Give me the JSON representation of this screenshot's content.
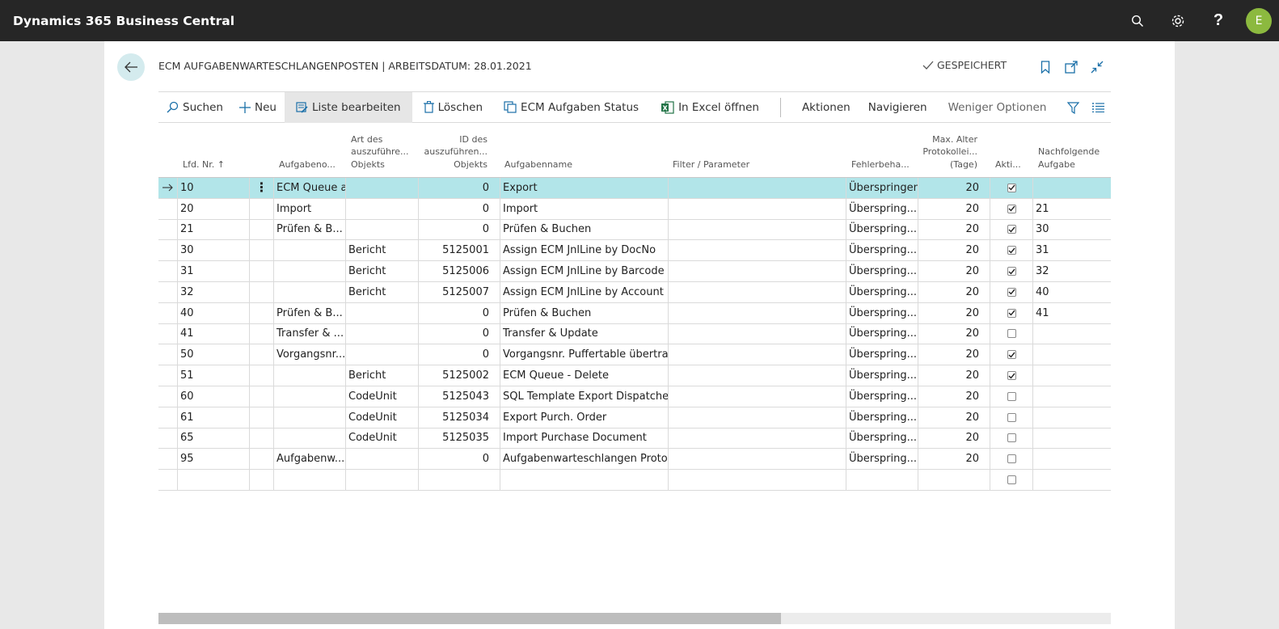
{
  "app": {
    "title": "Dynamics 365 Business Central",
    "avatar_initial": "E"
  },
  "page": {
    "title": "ECM AUFGABENWARTESCHLANGENPOSTEN | ARBEITSDATUM: 28.01.2021",
    "saved_label": "GESPEICHERT"
  },
  "actions": {
    "search": "Suchen",
    "new": "Neu",
    "edit_list": "Liste bearbeiten",
    "delete": "Löschen",
    "ecm_status": "ECM Aufgaben Status",
    "excel": "In Excel öffnen",
    "actions_menu": "Aktionen",
    "navigate": "Navigieren",
    "fewer_options": "Weniger Optionen"
  },
  "columns": {
    "lfd": "Lfd. Nr. ↑",
    "aufgabeno": "Aufgabeno...",
    "art_1": "Art des",
    "art_2": "auszuführe...",
    "art_3": "Objekts",
    "id_1": "ID des",
    "id_2": "auszuführen...",
    "id_3": "Objekts",
    "name": "Aufgabenname",
    "filter": "Filter / Parameter",
    "fehler": "Fehlerbeha...",
    "maxalter_1": "Max. Alter",
    "maxalter_2": "Protokollei...",
    "maxalter_3": "(Tage)",
    "aktiv": "Akti...",
    "nachf_1": "Nachfolgende",
    "nachf_2": "Aufgabe"
  },
  "rows": [
    {
      "lfd": "10",
      "code": "ECM Queue a",
      "art": "",
      "id": "0",
      "name": "Export",
      "filter": "",
      "fehler": "Überspringen",
      "maxage": "20",
      "aktiv": true,
      "next": ""
    },
    {
      "lfd": "20",
      "code": "Import",
      "art": "",
      "id": "0",
      "name": "Import",
      "filter": "",
      "fehler": "Überspring...",
      "maxage": "20",
      "aktiv": true,
      "next": "21"
    },
    {
      "lfd": "21",
      "code": "Prüfen & B...",
      "art": "",
      "id": "0",
      "name": "Prüfen & Buchen",
      "filter": "",
      "fehler": "Überspring...",
      "maxage": "20",
      "aktiv": true,
      "next": "30"
    },
    {
      "lfd": "30",
      "code": "",
      "art": "Bericht",
      "id": "5125001",
      "name": "Assign ECM JnlLine by DocNo",
      "filter": "",
      "fehler": "Überspring...",
      "maxage": "20",
      "aktiv": true,
      "next": "31"
    },
    {
      "lfd": "31",
      "code": "",
      "art": "Bericht",
      "id": "5125006",
      "name": "Assign ECM JnlLine by Barcode",
      "filter": "",
      "fehler": "Überspring...",
      "maxage": "20",
      "aktiv": true,
      "next": "32"
    },
    {
      "lfd": "32",
      "code": "",
      "art": "Bericht",
      "id": "5125007",
      "name": "Assign ECM JnlLine by Account",
      "filter": "",
      "fehler": "Überspring...",
      "maxage": "20",
      "aktiv": true,
      "next": "40"
    },
    {
      "lfd": "40",
      "code": "Prüfen & B...",
      "art": "",
      "id": "0",
      "name": "Prüfen & Buchen",
      "filter": "",
      "fehler": "Überspring...",
      "maxage": "20",
      "aktiv": true,
      "next": "41"
    },
    {
      "lfd": "41",
      "code": "Transfer & ...",
      "art": "",
      "id": "0",
      "name": "Transfer & Update",
      "filter": "",
      "fehler": "Überspring...",
      "maxage": "20",
      "aktiv": false,
      "next": ""
    },
    {
      "lfd": "50",
      "code": "Vorgangsnr....",
      "art": "",
      "id": "0",
      "name": "Vorgangsnr. Puffertable übertra...",
      "filter": "",
      "fehler": "Überspring...",
      "maxage": "20",
      "aktiv": true,
      "next": ""
    },
    {
      "lfd": "51",
      "code": "",
      "art": "Bericht",
      "id": "5125002",
      "name": "ECM Queue - Delete",
      "filter": "",
      "fehler": "Überspring...",
      "maxage": "20",
      "aktiv": true,
      "next": ""
    },
    {
      "lfd": "60",
      "code": "",
      "art": "CodeUnit",
      "id": "5125043",
      "name": "SQL Template Export Dispatcher",
      "filter": "",
      "fehler": "Überspring...",
      "maxage": "20",
      "aktiv": false,
      "next": ""
    },
    {
      "lfd": "61",
      "code": "",
      "art": "CodeUnit",
      "id": "5125034",
      "name": "Export Purch. Order",
      "filter": "",
      "fehler": "Überspring...",
      "maxage": "20",
      "aktiv": false,
      "next": ""
    },
    {
      "lfd": "65",
      "code": "",
      "art": "CodeUnit",
      "id": "5125035",
      "name": "Import Purchase Document",
      "filter": "",
      "fehler": "Überspring...",
      "maxage": "20",
      "aktiv": false,
      "next": ""
    },
    {
      "lfd": "95",
      "code": "Aufgabenw...",
      "art": "",
      "id": "0",
      "name": "Aufgabenwarteschlangen Proto...",
      "filter": "",
      "fehler": "Überspring...",
      "maxage": "20",
      "aktiv": false,
      "next": ""
    },
    {
      "lfd": "",
      "code": "",
      "art": "",
      "id": "",
      "name": "",
      "filter": "",
      "fehler": "",
      "maxage": "",
      "aktiv": false,
      "next": ""
    }
  ],
  "icons": {
    "search": "search-icon",
    "settings": "gear-icon",
    "help": "help-icon",
    "back": "back-arrow-icon",
    "bookmark": "bookmark-icon",
    "open_new": "open-new-window-icon",
    "collapse": "collapse-icon",
    "filter": "filter-icon",
    "list": "list-view-icon"
  },
  "colors": {
    "topbar": "#262626",
    "accent": "#00838f",
    "selected_row": "#b2e5e9",
    "avatar": "#8cb93f"
  }
}
